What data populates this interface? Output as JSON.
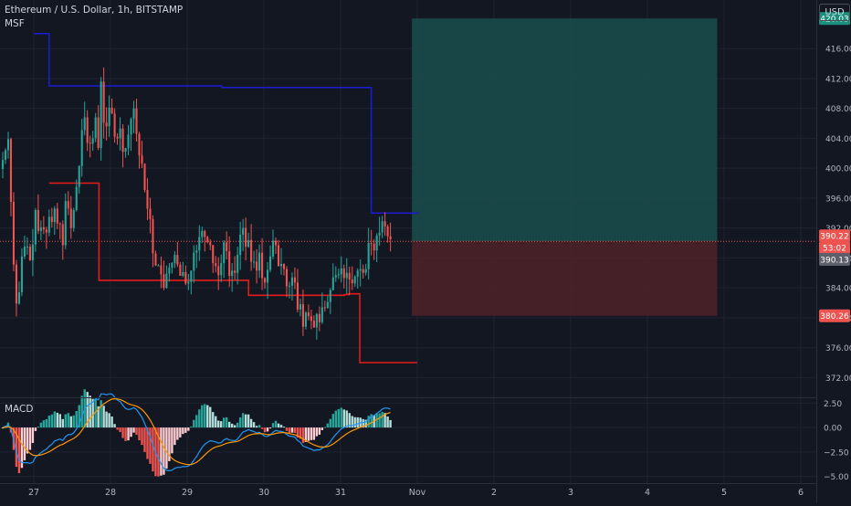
{
  "header": {
    "symbol_title": "Ethereum / U.S. Dollar, 1h, BITSTAMP",
    "indicator_label": "MSF",
    "currency_button": "USD"
  },
  "macd_panel": {
    "label": "MACD"
  },
  "colors": {
    "background": "#131722",
    "up": "#26a69a",
    "down": "#ef5350",
    "msf_upper": "#1c1cc9",
    "msf_lower": "#e31b1b",
    "macd_line": "#2196f3",
    "signal_line": "#ff9800",
    "target_zone": "#1a4d4b",
    "stop_zone": "#4f2328"
  },
  "chart_data": [
    {
      "type": "candlestick",
      "title": "Ethereum / U.S. Dollar, 1h, BITSTAMP",
      "interval": "1h",
      "ylim": [
        369.6,
        422.5
      ],
      "y_ticks": [
        372,
        376,
        380,
        384,
        388,
        392,
        396,
        400,
        404,
        408,
        412,
        416
      ],
      "y_tick_labels": [
        "372.00",
        "376.00",
        "380.00",
        "384.00",
        "388.00",
        "392.00",
        "396.00",
        "400.00",
        "404.00",
        "408.00",
        "412.00",
        "416.00"
      ],
      "x_tick_labels": [
        "27",
        "28",
        "29",
        "30",
        "31",
        "Nov",
        "2",
        "3",
        "4",
        "5",
        "6"
      ],
      "last_price": 390.22,
      "countdown": "53:02",
      "price_line_2": 390.13,
      "price_labels": [
        "420.03",
        "390.22",
        "53:02",
        "390.13",
        "380.26"
      ],
      "position": {
        "entry": 390.22,
        "target": 420.03,
        "stop": 380.26,
        "start_day": 4.93,
        "end_day": 8.91
      },
      "msf_upper": {
        "name": "MSF",
        "x": [
          0.0,
          0.2,
          0.2,
          2.45,
          2.45,
          4.4,
          4.4,
          5.02
        ],
        "y": [
          418,
          418,
          411,
          411,
          410.8,
          410.8,
          394,
          394
        ]
      },
      "msf_lower": {
        "name": "MSF",
        "x": [
          0.2,
          0.85,
          0.85,
          2.8,
          2.8,
          4.05,
          4.05,
          4.1,
          4.1,
          4.25,
          4.25,
          5.0
        ],
        "y": [
          398,
          398,
          385,
          385,
          383,
          383,
          383.1,
          383.1,
          383.2,
          383.2,
          374,
          374
        ]
      },
      "candles_close": [
        401.1,
        402.4,
        403.9,
        395.5,
        387.1,
        381.9,
        383.4,
        388.2,
        389.5,
        389.5,
        387.7,
        389.8,
        394.4,
        391.6,
        392.1,
        391.8,
        391.4,
        393.5,
        392.8,
        394.6,
        392.6,
        392.5,
        389.7,
        395.6,
        394.6,
        392.0,
        394.4,
        397.5,
        400.3,
        405.1,
        406.8,
        403.4,
        403.3,
        404.0,
        406.8,
        402.7,
        411.6,
        406.1,
        405.6,
        408.1,
        407.3,
        404.2,
        404.0,
        405.3,
        402.2,
        402.7,
        404.5,
        406.6,
        408.0,
        404.6,
        401.7,
        400.6,
        397.1,
        394.6,
        393.2,
        388.6,
        387.0,
        387.0,
        385.8,
        384.0,
        385.9,
        386.7,
        387.3,
        388.4,
        387.1,
        385.6,
        386.1,
        384.6,
        384.8,
        386.3,
        388.7,
        389.0,
        390.8,
        391.6,
        390.8,
        390.1,
        389.7,
        387.3,
        386.9,
        385.7,
        387.3,
        390.1,
        388.9,
        385.6,
        386.3,
        386.0,
        388.4,
        391.1,
        392.0,
        389.5,
        390.4,
        387.5,
        387.5,
        386.3,
        388.7,
        385.3,
        384.7,
        386.4,
        388.2,
        390.3,
        389.7,
        386.9,
        387.2,
        386.5,
        384.2,
        384.3,
        385.4,
        384.7,
        381.1,
        381.8,
        378.8,
        380.7,
        380.2,
        379.6,
        378.7,
        380.5,
        379.4,
        381.4,
        381.3,
        382.1,
        383.7,
        385.4,
        385.7,
        385.8,
        386.6,
        385.3,
        386.0,
        385.1,
        384.6,
        385.5,
        386.3,
        386.5,
        386.0,
        386.5,
        390.0,
        389.9,
        389.0,
        391.0,
        391.4,
        392.9,
        392.2,
        390.9,
        390.5
      ],
      "macd_panel": {
        "ylim": [
          -5.6,
          3.0
        ],
        "y_ticks": [
          2.5,
          0.0,
          -2.5,
          -5.0
        ],
        "y_tick_labels": [
          "2.50",
          "0.00",
          "−2.50",
          "−5.00"
        ]
      }
    }
  ]
}
